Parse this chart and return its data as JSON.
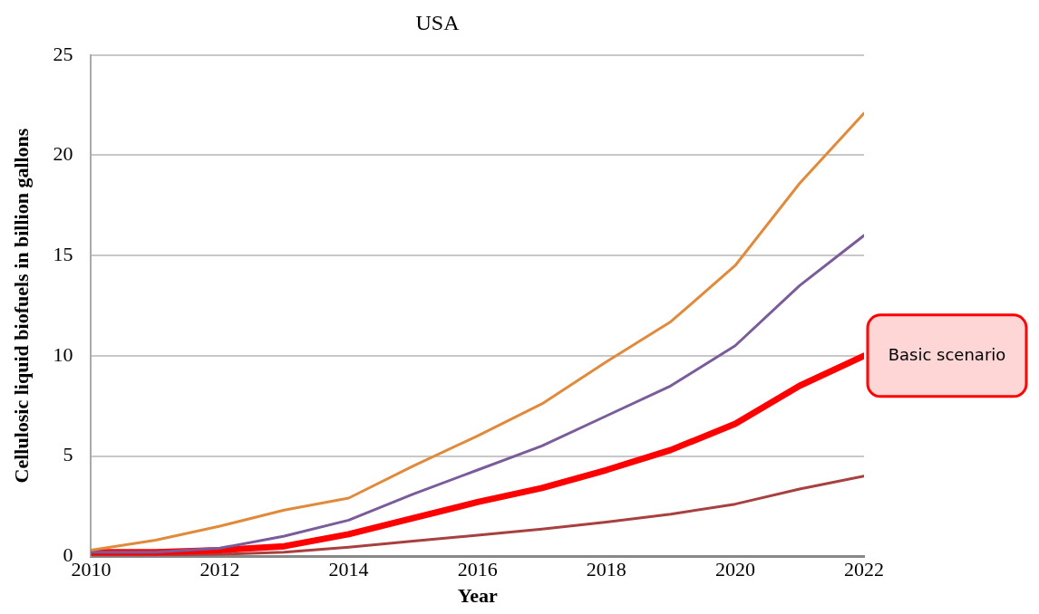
{
  "chart_data": {
    "type": "line",
    "title": "USA",
    "xlabel": "Year",
    "ylabel": "Cellulosic liquid biofuels in billion gallons",
    "x": [
      2010,
      2011,
      2012,
      2013,
      2014,
      2015,
      2016,
      2017,
      2018,
      2019,
      2020,
      2021,
      2022
    ],
    "series": [
      {
        "color": "#e08a3c",
        "values": [
          0.3,
          0.8,
          1.5,
          2.3,
          2.9,
          4.5,
          6.0,
          7.6,
          9.7,
          11.7,
          14.5,
          18.6,
          22.1
        ]
      },
      {
        "color": "#7a5c9a",
        "values": [
          0.2,
          0.2,
          0.4,
          1.0,
          1.8,
          3.1,
          4.3,
          5.5,
          7.0,
          8.5,
          10.5,
          13.5,
          16.0
        ]
      },
      {
        "color": "#ff0000",
        "values": [
          0.2,
          0.2,
          0.3,
          0.5,
          1.1,
          1.9,
          2.7,
          3.4,
          4.3,
          5.3,
          6.6,
          8.5,
          10.0
        ]
      },
      {
        "color": "#a84040",
        "values": [
          0.0,
          0.05,
          0.1,
          0.2,
          0.45,
          0.75,
          1.05,
          1.35,
          1.7,
          2.1,
          2.6,
          3.35,
          4.0
        ]
      }
    ],
    "xlim": [
      2010,
      2022
    ],
    "xticks": [
      2010,
      2012,
      2014,
      2016,
      2018,
      2020,
      2022
    ],
    "ylim": [
      0,
      25
    ],
    "yticks": [
      0,
      5,
      10,
      15,
      20,
      25
    ],
    "grid": "y",
    "legend": false,
    "marker": "none",
    "line_style": "solid",
    "annotations": [
      {
        "text": "Basic scenario",
        "x": 2022,
        "y": 10
      }
    ]
  }
}
